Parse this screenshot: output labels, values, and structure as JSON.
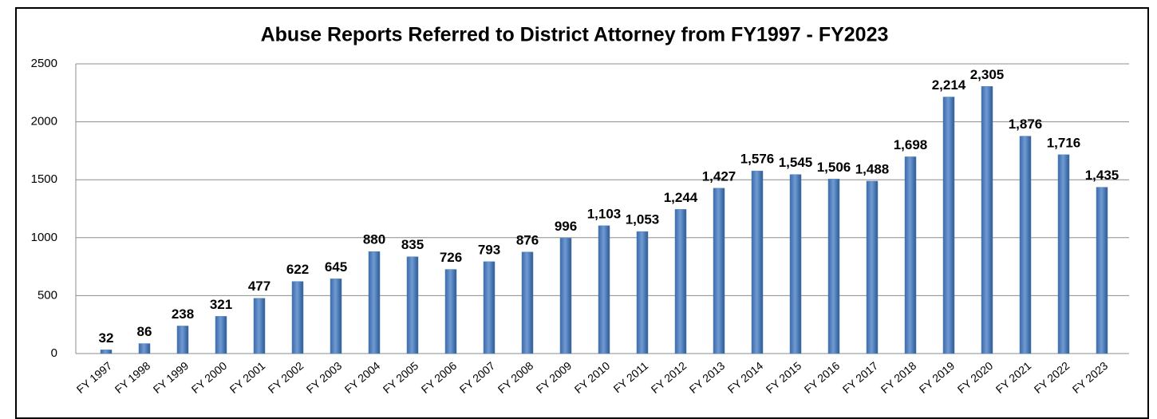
{
  "chart_data": {
    "type": "bar",
    "title": "Abuse Reports Referred to District Attorney from FY1997 - FY2023",
    "categories": [
      "FY 1997",
      "FY 1998",
      "FY 1999",
      "FY 2000",
      "FY 2001",
      "FY 2002",
      "FY 2003",
      "FY 2004",
      "FY 2005",
      "FY 2006",
      "FY 2007",
      "FY 2008",
      "FY 2009",
      "FY 2010",
      "FY 2011",
      "FY 2012",
      "FY 2013",
      "FY 2014",
      "FY 2015",
      "FY 2016",
      "FY 2017",
      "FY 2018",
      "FY 2019",
      "FY 2020",
      "FY 2021",
      "FY 2022",
      "FY 2023"
    ],
    "values": [
      32,
      86,
      238,
      321,
      477,
      622,
      645,
      880,
      835,
      726,
      793,
      876,
      996,
      1103,
      1053,
      1244,
      1427,
      1576,
      1545,
      1506,
      1488,
      1698,
      2214,
      2305,
      1876,
      1716,
      1435
    ],
    "value_labels": [
      "32",
      "86",
      "238",
      "321",
      "477",
      "622",
      "645",
      "880",
      "835",
      "726",
      "793",
      "876",
      "996",
      "1,103",
      "1,053",
      "1,244",
      "1,427",
      "1,576",
      "1,545",
      "1,506",
      "1,488",
      "1,698",
      "2,214",
      "2,305",
      "1,876",
      "1,716",
      "1,435"
    ],
    "color": "#4f81bd",
    "ylim": [
      0,
      2500
    ],
    "yticks": [
      0,
      500,
      1000,
      1500,
      2000,
      2500
    ],
    "grid": true
  }
}
